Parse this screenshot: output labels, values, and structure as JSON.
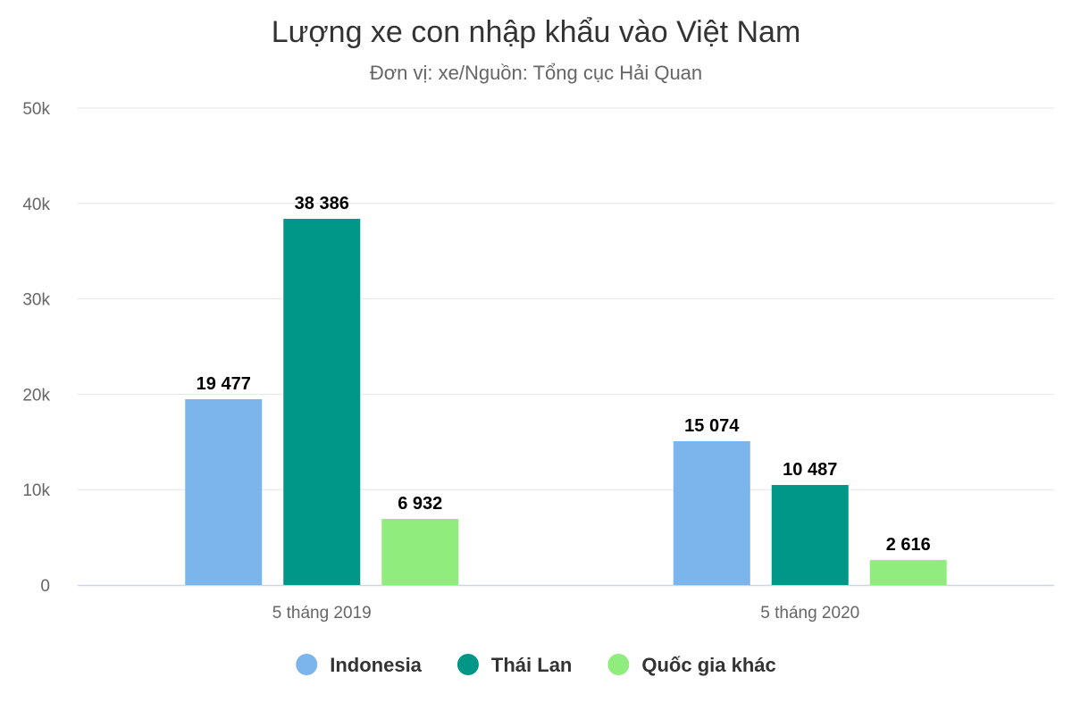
{
  "chart_data": {
    "type": "bar",
    "title": "Lượng xe con nhập khẩu vào Việt Nam",
    "subtitle": "Đơn vị: xe/Nguồn: Tổng cục Hải Quan",
    "categories": [
      "5 tháng 2019",
      "5 tháng 2020"
    ],
    "series": [
      {
        "name": "Indonesia",
        "color": "#7cb5ec",
        "values": [
          19477,
          15074
        ],
        "labels": [
          "19 477",
          "15 074"
        ]
      },
      {
        "name": "Thái Lan",
        "color": "#009688",
        "values": [
          38386,
          10487
        ],
        "labels": [
          "38 386",
          "10 487"
        ]
      },
      {
        "name": "Quốc gia khác",
        "color": "#90ed7d",
        "values": [
          6932,
          2616
        ],
        "labels": [
          "6 932",
          "2 616"
        ]
      }
    ],
    "ylim": [
      0,
      50000
    ],
    "yticks": [
      0,
      10000,
      20000,
      30000,
      40000,
      50000
    ],
    "ytick_labels": [
      "0",
      "10k",
      "20k",
      "30k",
      "40k",
      "50k"
    ],
    "grid": true,
    "legend": "bottom-center"
  }
}
